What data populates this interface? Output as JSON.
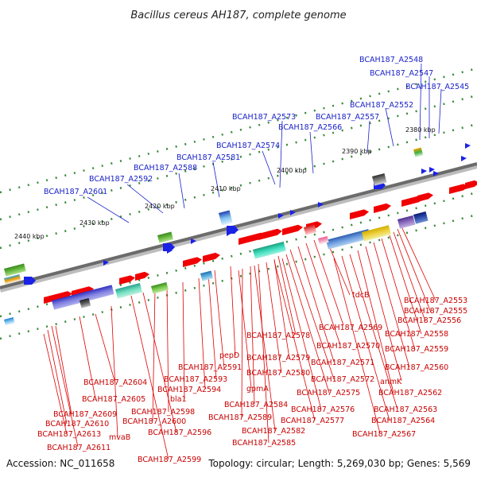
{
  "title": "Bacillus cereus AH187, complete genome",
  "footer": {
    "accession": "Accession: NC_011658",
    "summary": "Topology: circular; Length: 5,269,030 bp; Genes: 5,569"
  },
  "scale_labels": [
    "2440 kbp",
    "2430 kbp",
    "2420 kbp",
    "2410 kbp",
    "2400 kbp",
    "2390 kbp",
    "2380 kbp"
  ],
  "top_labels": [
    "BCAH187_A2548",
    "BCAH187_A2547",
    "BCAH187_A2545",
    "BCAH187_A2552",
    "BCAH187_A2573",
    "BCAH187_A2557",
    "BCAH187_A2566",
    "BCAH187_A2574",
    "BCAH187_A2581",
    "BCAH187_A2588",
    "BCAH187_A2592",
    "BCAH187_A2601"
  ],
  "bottom_labels": [
    "BCAH187_A2553",
    "BCAH187_A2555",
    "BCAH187_A2556",
    "tdcB",
    "BCAH187_A2558",
    "BCAH187_A2569",
    "BCAH187_A2578",
    "BCAH187_A2559",
    "BCAH187_A2570",
    "BCAH187_A2579",
    "pepD",
    "BCAH187_A2560",
    "BCAH187_A2571",
    "BCAH187_A2591",
    "BCAH187_A2580",
    "BCAH187_A2593",
    "anmK",
    "BCAH187_A2572",
    "BCAH187_A2604",
    "BCAH187_A2594",
    "gpmA",
    "BCAH187_A2562",
    "BCAH187_A2575",
    "BCAH187_A2605",
    "bla1",
    "BCAH187_A2584",
    "BCAH187_A2563",
    "BCAH187_A2576",
    "BCAH187_A2598",
    "BCAH187_A2589",
    "BCAH187_A2609",
    "BCAH187_A2564",
    "BCAH187_A2577",
    "BCAH187_A2600",
    "BCAH187_A2610",
    "BCAH187_A2582",
    "BCAH187_A2596",
    "BCAH187_A2567",
    "BCAH187_A2613",
    "mvaB",
    "BCAH187_A2585",
    "BCAH187_A2611",
    "BCAH187_A2599"
  ]
}
